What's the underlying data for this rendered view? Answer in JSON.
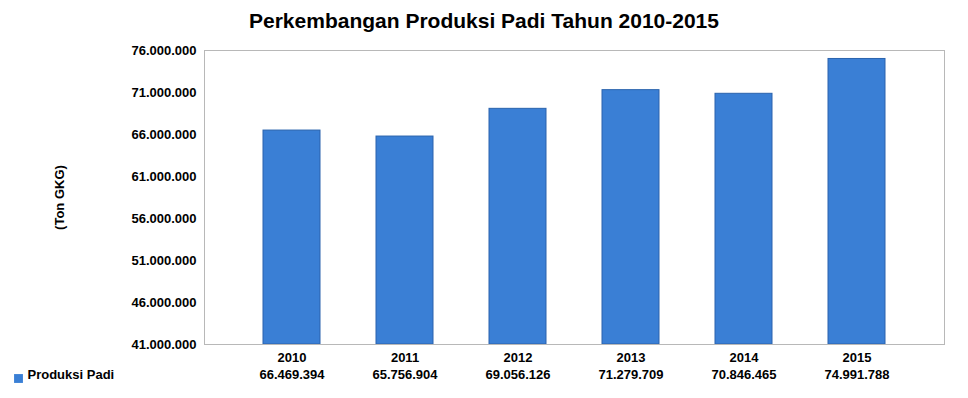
{
  "chart_data": {
    "type": "bar",
    "title": "Perkembangan Produksi Padi Tahun 2010-2015",
    "ylabel": "(Ton GKG)",
    "categories": [
      "2010",
      "2011",
      "2012",
      "2013",
      "2014",
      "2015"
    ],
    "series": [
      {
        "name": "Produksi Padi",
        "color": "#3a7fd5",
        "values": [
          66469394,
          65756904,
          69056126,
          71279709,
          70846465,
          74991788
        ],
        "value_labels": [
          "66.469.394",
          "65.756.904",
          "69.056.126",
          "71.279.709",
          "70.846.465",
          "74.991.788"
        ]
      }
    ],
    "ylim": [
      41000000,
      76000000
    ],
    "yticks": [
      {
        "value": 41000000,
        "label": "41.000.000"
      },
      {
        "value": 46000000,
        "label": "46.000.000"
      },
      {
        "value": 51000000,
        "label": "51.000.000"
      },
      {
        "value": 56000000,
        "label": "56.000.000"
      },
      {
        "value": 61000000,
        "label": "61.000.000"
      },
      {
        "value": 66000000,
        "label": "66.000.000"
      },
      {
        "value": 71000000,
        "label": "71.000.000"
      },
      {
        "value": 76000000,
        "label": "76.000.000"
      }
    ],
    "grid": false,
    "data_labels": true,
    "legend": "bottom-left"
  }
}
